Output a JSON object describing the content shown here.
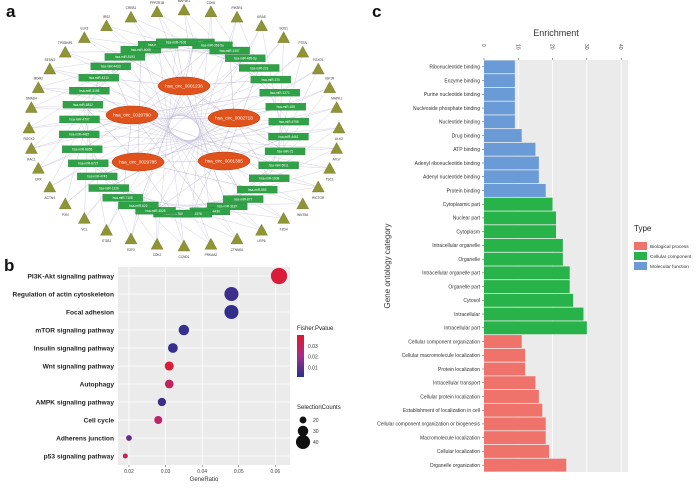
{
  "panel_labels": {
    "a": "a",
    "b": "b",
    "c": "c"
  },
  "network": {
    "circ_nodes": [
      "hsa_circ_0001236",
      "hsa_circ_0020790",
      "hsa_circ_0002718",
      "hsa_circ_0029785",
      "hsa_circ_0001385"
    ],
    "mirna_labels": [
      "hsa-miR-26b",
      "hsa-miR-363-5p",
      "hsa-miR-1307",
      "hsa-miR-485-5p",
      "hsa-miR-223",
      "hsa-miR-370",
      "hsa-miR-1271",
      "hsa-miR-185",
      "hsa-miR-6798",
      "hsa-miR-4461",
      "hsa-miR-21",
      "hsa-miR-5011",
      "hsa-miR-1908",
      "hsa-miR-593",
      "hsa-miR-877",
      "hsa-miR-3187",
      "hsa-miR-4430",
      "hsa-miR-1976",
      "hsa-miR-760",
      "hsa-miR-4525",
      "hsa-miR-622",
      "hsa-miR-7108",
      "hsa-miR-1226",
      "hsa-miR-4745",
      "hsa-miR-6727",
      "hsa-miR-6855",
      "hsa-miR-4487",
      "hsa-miR-4707",
      "hsa-miR-6812",
      "hsa-miR-3195",
      "hsa-miR-4313",
      "hsa-miR-4433",
      "hsa-miR-5193",
      "hsa-miR-6068",
      "hsa-miR-6858",
      "hsa-miR-7106"
    ],
    "gene_labels": [
      "MAP3K1",
      "CDK6",
      "PIK3R1",
      "KRAS",
      "SOS1",
      "PTEN",
      "FOXO1",
      "IGF1R",
      "MAPK1",
      "ULK2",
      "ATG7",
      "TSC1",
      "RICTOR",
      "WNT5A",
      "FZD4",
      "LRP6",
      "CTNNB1",
      "PRKAA2",
      "CCND1",
      "CDK2",
      "E2F3",
      "ITGB1",
      "VCL",
      "PXN",
      "ACTN4",
      "CRK",
      "RAC1",
      "ROCK2",
      "SMAD4",
      "MDM2",
      "SESN3",
      "TP53INP1",
      "ELK3",
      "IRS2",
      "CREB1",
      "PPP2R1B"
    ]
  },
  "chart_data": [
    {
      "type": "scatter",
      "panel": "b",
      "title": "",
      "xlabel": "GeneRatio",
      "ylabel": "",
      "xlim": [
        0.017,
        0.064
      ],
      "xticks": [
        0.02,
        0.03,
        0.04,
        0.05,
        0.06
      ],
      "xtick_labels": [
        "0.02",
        "0.03",
        "0.04",
        "0.05",
        "0.06"
      ],
      "categories": [
        "PI3K-Akt signaling pathway",
        "Regulation of actin cytoskeleton",
        "Focal adhesion",
        "mTOR signaling pathway",
        "Insulin signaling pathway",
        "Wnt signaling pathway",
        "Autophagy",
        "AMPK signaling pathway",
        "Cell cycle",
        "Adherens junction",
        "p53 signaling pathway"
      ],
      "gene_ratio": [
        0.061,
        0.048,
        0.048,
        0.035,
        0.032,
        0.031,
        0.031,
        0.029,
        0.028,
        0.02,
        0.019
      ],
      "pvalue": [
        0.037,
        0.004,
        0.002,
        0.003,
        0.003,
        0.038,
        0.03,
        0.004,
        0.028,
        0.01,
        0.03
      ],
      "selection_counts": [
        46,
        40,
        40,
        30,
        28,
        26,
        25,
        24,
        23,
        17,
        15
      ],
      "color_legend": {
        "title": "Fisher.Pvalue",
        "ticks": [
          0.03,
          0.02,
          0.01
        ],
        "tick_labels": [
          "0.03",
          "0.02",
          "0.01"
        ],
        "range": [
          0.001,
          0.04
        ],
        "low_color": "#2b2f8c",
        "mid_color": "#a22d8a",
        "high_color": "#e3192b"
      },
      "size_legend": {
        "title": "SelectionCounts",
        "values": [
          20,
          30,
          40
        ],
        "labels": [
          "20",
          "30",
          "40"
        ]
      },
      "grid": true
    },
    {
      "type": "bar",
      "orientation": "horizontal",
      "panel": "c",
      "title": "Enrichment",
      "ylabel": "Gene ontology category",
      "xlim": [
        0,
        42
      ],
      "xticks": [
        0,
        10,
        20,
        30,
        40
      ],
      "xtick_labels": [
        "0",
        "10",
        "20",
        "30",
        "40"
      ],
      "categories": [
        "Ribonucleotide binding",
        "Enzyme binding",
        "Purine nucleotide binding",
        "Nucleoside phosphate binding",
        "Nucleotide binding",
        "Drug binding",
        "ATP binding",
        "Adenyl ribonucleotide binding",
        "Adenyl nucleotide binding",
        "Protein binding",
        "Cytoplasmic part",
        "Nuclear part",
        "Cytoplasm",
        "Intracellular organelle",
        "Organelle",
        "Intracellular organelle part",
        "Organelle part",
        "Cytosol",
        "Intracellular",
        "Intracellular part",
        "Cellular component organization",
        "Cellular macromolecule localization",
        "Protein localization",
        "Intracellular transport",
        "Cellular protein localization",
        "Establishment of localization in cell",
        "Cellular component organization or biogenesis",
        "Macromolecule localization",
        "Cellular localization",
        "Organelle organization"
      ],
      "values": [
        9,
        9,
        9,
        9,
        9,
        11,
        15,
        16,
        16,
        18,
        20,
        21,
        21,
        23,
        23,
        25,
        25,
        26,
        29,
        30,
        11,
        12,
        12,
        15,
        16,
        17,
        18,
        18,
        19,
        24
      ],
      "types": [
        "Molecular function",
        "Molecular function",
        "Molecular function",
        "Molecular function",
        "Molecular function",
        "Molecular function",
        "Molecular function",
        "Molecular function",
        "Molecular function",
        "Molecular function",
        "Cellular component",
        "Cellular component",
        "Cellular component",
        "Cellular component",
        "Cellular component",
        "Cellular component",
        "Cellular component",
        "Cellular component",
        "Cellular component",
        "Cellular component",
        "Biological process",
        "Biological process",
        "Biological process",
        "Biological process",
        "Biological process",
        "Biological process",
        "Biological process",
        "Biological process",
        "Biological process",
        "Biological process"
      ],
      "legend": {
        "title": "Type",
        "entries": [
          {
            "label": "Biological process",
            "color": "#f0736b"
          },
          {
            "label": "Cellular component",
            "color": "#28b34a"
          },
          {
            "label": "Molecular function",
            "color": "#6a9bd6"
          }
        ]
      },
      "grid": true
    }
  ]
}
